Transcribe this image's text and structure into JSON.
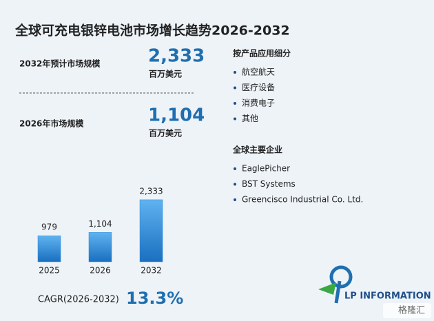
{
  "title": "全球可充电银锌电池市场增长趋势2026-2032",
  "stats": [
    {
      "label": "2032年预计市场规模",
      "value": "2,333",
      "unit": "百万美元"
    },
    {
      "label": "2026年市场规模",
      "value": "1,104",
      "unit": "百万美元"
    }
  ],
  "segments": {
    "heading": "按产品应用细分",
    "items": [
      "航空航天",
      "医疗设备",
      "消费电子",
      "其他"
    ]
  },
  "companies": {
    "heading": "全球主要企业",
    "items": [
      "EaglePicher",
      "BST Systems",
      "Greencisco Industrial Co. Ltd."
    ]
  },
  "chart_data": {
    "type": "bar",
    "categories": [
      "2025",
      "2026",
      "2032"
    ],
    "values": [
      979,
      1104,
      2333
    ],
    "value_labels": [
      "979",
      "1,104",
      "2,333"
    ],
    "color": "#2a88d8"
  },
  "cagr": {
    "label": "CAGR(2026-2032)",
    "value": "13.3%"
  },
  "logo": "LP INFORMATION",
  "watermark": "格隆汇"
}
